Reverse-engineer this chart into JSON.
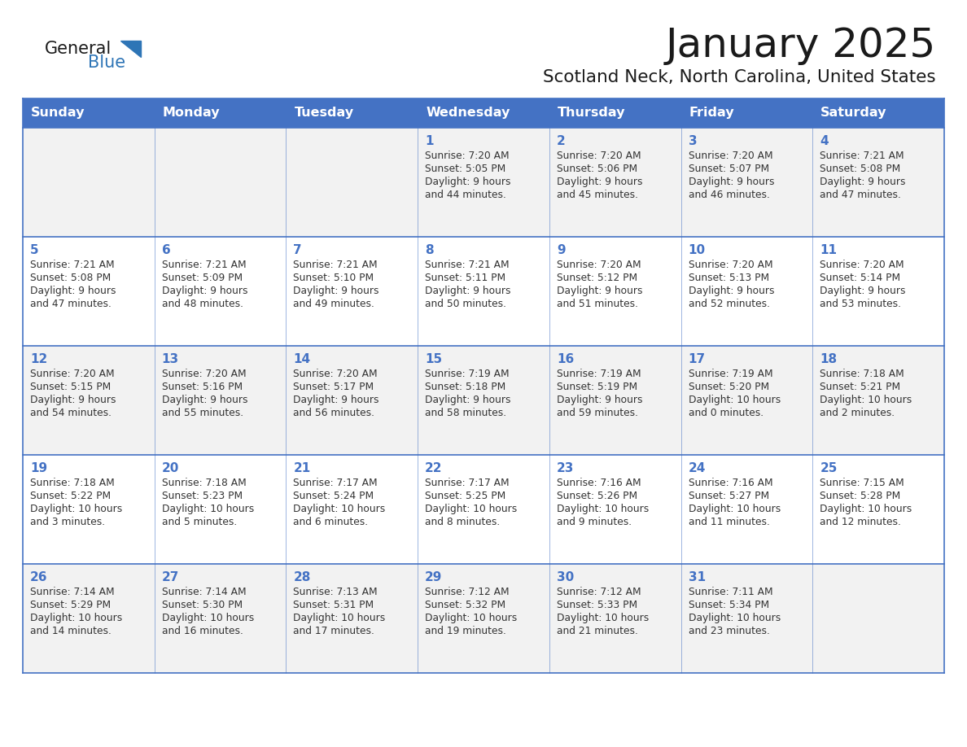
{
  "title": "January 2025",
  "subtitle": "Scotland Neck, North Carolina, United States",
  "days_of_week": [
    "Sunday",
    "Monday",
    "Tuesday",
    "Wednesday",
    "Thursday",
    "Friday",
    "Saturday"
  ],
  "header_bg": "#4472C4",
  "header_text_color": "#FFFFFF",
  "odd_row_bg": "#F2F2F2",
  "even_row_bg": "#FFFFFF",
  "line_color": "#4472C4",
  "day_number_color": "#4472C4",
  "cell_text_color": "#333333",
  "title_color": "#1a1a1a",
  "subtitle_color": "#1a1a1a",
  "logo_general_color": "#1a1a1a",
  "logo_blue_color": "#2E75B6",
  "calendar_data": [
    [
      {
        "day": "",
        "sunrise": "",
        "sunset": "",
        "daylight_line1": "",
        "daylight_line2": ""
      },
      {
        "day": "",
        "sunrise": "",
        "sunset": "",
        "daylight_line1": "",
        "daylight_line2": ""
      },
      {
        "day": "",
        "sunrise": "",
        "sunset": "",
        "daylight_line1": "",
        "daylight_line2": ""
      },
      {
        "day": "1",
        "sunrise": "7:20 AM",
        "sunset": "5:05 PM",
        "daylight_line1": "9 hours",
        "daylight_line2": "and 44 minutes."
      },
      {
        "day": "2",
        "sunrise": "7:20 AM",
        "sunset": "5:06 PM",
        "daylight_line1": "9 hours",
        "daylight_line2": "and 45 minutes."
      },
      {
        "day": "3",
        "sunrise": "7:20 AM",
        "sunset": "5:07 PM",
        "daylight_line1": "9 hours",
        "daylight_line2": "and 46 minutes."
      },
      {
        "day": "4",
        "sunrise": "7:21 AM",
        "sunset": "5:08 PM",
        "daylight_line1": "9 hours",
        "daylight_line2": "and 47 minutes."
      }
    ],
    [
      {
        "day": "5",
        "sunrise": "7:21 AM",
        "sunset": "5:08 PM",
        "daylight_line1": "9 hours",
        "daylight_line2": "and 47 minutes."
      },
      {
        "day": "6",
        "sunrise": "7:21 AM",
        "sunset": "5:09 PM",
        "daylight_line1": "9 hours",
        "daylight_line2": "and 48 minutes."
      },
      {
        "day": "7",
        "sunrise": "7:21 AM",
        "sunset": "5:10 PM",
        "daylight_line1": "9 hours",
        "daylight_line2": "and 49 minutes."
      },
      {
        "day": "8",
        "sunrise": "7:21 AM",
        "sunset": "5:11 PM",
        "daylight_line1": "9 hours",
        "daylight_line2": "and 50 minutes."
      },
      {
        "day": "9",
        "sunrise": "7:20 AM",
        "sunset": "5:12 PM",
        "daylight_line1": "9 hours",
        "daylight_line2": "and 51 minutes."
      },
      {
        "day": "10",
        "sunrise": "7:20 AM",
        "sunset": "5:13 PM",
        "daylight_line1": "9 hours",
        "daylight_line2": "and 52 minutes."
      },
      {
        "day": "11",
        "sunrise": "7:20 AM",
        "sunset": "5:14 PM",
        "daylight_line1": "9 hours",
        "daylight_line2": "and 53 minutes."
      }
    ],
    [
      {
        "day": "12",
        "sunrise": "7:20 AM",
        "sunset": "5:15 PM",
        "daylight_line1": "9 hours",
        "daylight_line2": "and 54 minutes."
      },
      {
        "day": "13",
        "sunrise": "7:20 AM",
        "sunset": "5:16 PM",
        "daylight_line1": "9 hours",
        "daylight_line2": "and 55 minutes."
      },
      {
        "day": "14",
        "sunrise": "7:20 AM",
        "sunset": "5:17 PM",
        "daylight_line1": "9 hours",
        "daylight_line2": "and 56 minutes."
      },
      {
        "day": "15",
        "sunrise": "7:19 AM",
        "sunset": "5:18 PM",
        "daylight_line1": "9 hours",
        "daylight_line2": "and 58 minutes."
      },
      {
        "day": "16",
        "sunrise": "7:19 AM",
        "sunset": "5:19 PM",
        "daylight_line1": "9 hours",
        "daylight_line2": "and 59 minutes."
      },
      {
        "day": "17",
        "sunrise": "7:19 AM",
        "sunset": "5:20 PM",
        "daylight_line1": "10 hours",
        "daylight_line2": "and 0 minutes."
      },
      {
        "day": "18",
        "sunrise": "7:18 AM",
        "sunset": "5:21 PM",
        "daylight_line1": "10 hours",
        "daylight_line2": "and 2 minutes."
      }
    ],
    [
      {
        "day": "19",
        "sunrise": "7:18 AM",
        "sunset": "5:22 PM",
        "daylight_line1": "10 hours",
        "daylight_line2": "and 3 minutes."
      },
      {
        "day": "20",
        "sunrise": "7:18 AM",
        "sunset": "5:23 PM",
        "daylight_line1": "10 hours",
        "daylight_line2": "and 5 minutes."
      },
      {
        "day": "21",
        "sunrise": "7:17 AM",
        "sunset": "5:24 PM",
        "daylight_line1": "10 hours",
        "daylight_line2": "and 6 minutes."
      },
      {
        "day": "22",
        "sunrise": "7:17 AM",
        "sunset": "5:25 PM",
        "daylight_line1": "10 hours",
        "daylight_line2": "and 8 minutes."
      },
      {
        "day": "23",
        "sunrise": "7:16 AM",
        "sunset": "5:26 PM",
        "daylight_line1": "10 hours",
        "daylight_line2": "and 9 minutes."
      },
      {
        "day": "24",
        "sunrise": "7:16 AM",
        "sunset": "5:27 PM",
        "daylight_line1": "10 hours",
        "daylight_line2": "and 11 minutes."
      },
      {
        "day": "25",
        "sunrise": "7:15 AM",
        "sunset": "5:28 PM",
        "daylight_line1": "10 hours",
        "daylight_line2": "and 12 minutes."
      }
    ],
    [
      {
        "day": "26",
        "sunrise": "7:14 AM",
        "sunset": "5:29 PM",
        "daylight_line1": "10 hours",
        "daylight_line2": "and 14 minutes."
      },
      {
        "day": "27",
        "sunrise": "7:14 AM",
        "sunset": "5:30 PM",
        "daylight_line1": "10 hours",
        "daylight_line2": "and 16 minutes."
      },
      {
        "day": "28",
        "sunrise": "7:13 AM",
        "sunset": "5:31 PM",
        "daylight_line1": "10 hours",
        "daylight_line2": "and 17 minutes."
      },
      {
        "day": "29",
        "sunrise": "7:12 AM",
        "sunset": "5:32 PM",
        "daylight_line1": "10 hours",
        "daylight_line2": "and 19 minutes."
      },
      {
        "day": "30",
        "sunrise": "7:12 AM",
        "sunset": "5:33 PM",
        "daylight_line1": "10 hours",
        "daylight_line2": "and 21 minutes."
      },
      {
        "day": "31",
        "sunrise": "7:11 AM",
        "sunset": "5:34 PM",
        "daylight_line1": "10 hours",
        "daylight_line2": "and 23 minutes."
      },
      {
        "day": "",
        "sunrise": "",
        "sunset": "",
        "daylight_line1": "",
        "daylight_line2": ""
      }
    ]
  ]
}
